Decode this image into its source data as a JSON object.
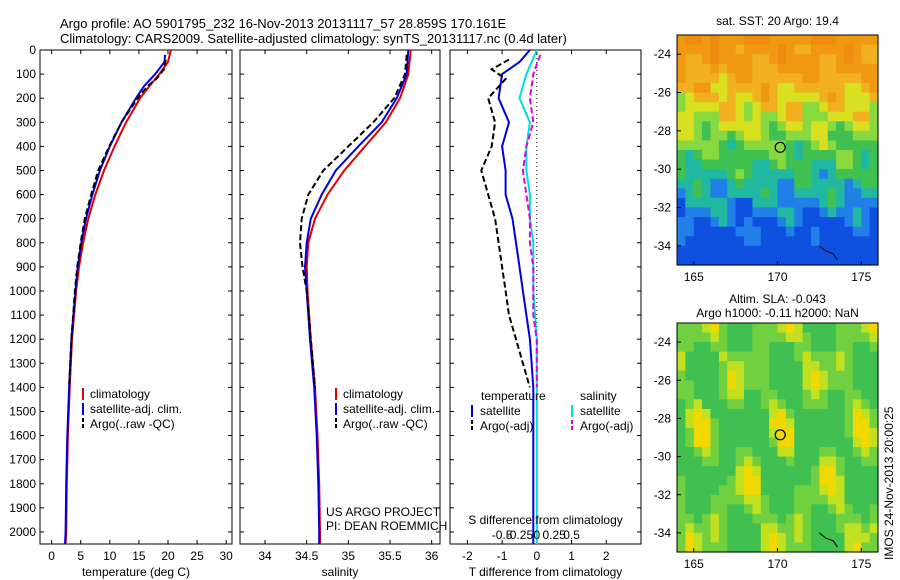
{
  "header": {
    "line1": "Argo profile: AO 5901795_232 16-Nov-2013 20131117_57 28.859S 170.161E",
    "line2": "Climatology: CARS2009. Satellite-adjusted climatology: synTS_20131117.nc (0.4d later)"
  },
  "project": {
    "line1": "US ARGO PROJECT",
    "line2": "PI: DEAN ROEMMICH"
  },
  "side_stamp": "IMOS 24-Nov-2013 20:00:25",
  "colors": {
    "climatology": "#e00000",
    "satellite": "#0000dd",
    "argo": "#000000",
    "sat_salinity": "#00dddd",
    "argo_salinity": "#dd00dd"
  },
  "chart_data": [
    {
      "type": "line",
      "xlabel": "temperature (deg C)",
      "ylabel": "",
      "xlim": [
        -2,
        31
      ],
      "ylim": [
        2050,
        0
      ],
      "xticks": [
        0,
        5,
        10,
        15,
        20,
        25,
        30
      ],
      "yticks": [
        0,
        100,
        200,
        300,
        400,
        500,
        600,
        700,
        800,
        900,
        1000,
        1100,
        1200,
        1300,
        1400,
        1500,
        1600,
        1700,
        1800,
        1900,
        2000
      ],
      "legend": [
        "climatology",
        "satellite-adj. clim.",
        "Argo(..raw -QC)"
      ],
      "series": [
        {
          "name": "climatology",
          "y": [
            0,
            50,
            100,
            150,
            200,
            300,
            400,
            500,
            600,
            700,
            800,
            900,
            1000,
            1200,
            1400,
            1600,
            1800,
            2000,
            2050
          ],
          "x": [
            20.5,
            20.0,
            18.5,
            16.8,
            15.2,
            12.8,
            10.8,
            9.0,
            7.5,
            6.3,
            5.4,
            4.7,
            4.2,
            3.5,
            3.1,
            2.8,
            2.6,
            2.5,
            2.4
          ]
        },
        {
          "name": "satellite-adj. clim.",
          "y": [
            20,
            50,
            100,
            150,
            200,
            300,
            400,
            500,
            600,
            700,
            800,
            900,
            1000,
            1200,
            1400,
            1600,
            1800,
            2000,
            2050
          ],
          "x": [
            19.5,
            19.4,
            17.8,
            15.9,
            14.5,
            12.0,
            10.0,
            8.3,
            7.0,
            5.9,
            5.1,
            4.5,
            4.1,
            3.4,
            3.0,
            2.7,
            2.5,
            2.4,
            2.3
          ]
        },
        {
          "name": "Argo(..raw -QC)",
          "y": [
            40,
            80,
            120,
            150,
            200,
            300,
            400,
            500,
            600,
            700,
            800,
            900,
            1000,
            1100,
            1200,
            1300,
            1400
          ],
          "x": [
            19.6,
            19.3,
            18.0,
            16.5,
            14.8,
            12.0,
            9.9,
            8.0,
            6.8,
            5.7,
            5.0,
            4.4,
            4.0,
            3.7,
            3.4,
            3.2,
            3.0
          ]
        }
      ]
    },
    {
      "type": "line",
      "xlabel": "salinity",
      "ylabel": "",
      "xlim": [
        33.7,
        36.1
      ],
      "ylim": [
        2050,
        0
      ],
      "xticks": [
        34,
        34.5,
        35,
        35.5,
        36
      ],
      "xticklabels": [
        "34",
        "34.5",
        "35",
        "35.5",
        "36"
      ],
      "legend": [
        "climatology",
        "satellite-adj. clim.",
        "Argo(..raw -QC)"
      ],
      "series": [
        {
          "name": "climatology",
          "y": [
            0,
            100,
            200,
            300,
            400,
            500,
            600,
            700,
            800,
            900,
            1000,
            1200,
            1400,
            1600,
            1800,
            2000,
            2050
          ],
          "x": [
            35.75,
            35.72,
            35.62,
            35.45,
            35.2,
            34.95,
            34.75,
            34.6,
            34.52,
            34.5,
            34.51,
            34.55,
            34.6,
            34.63,
            34.65,
            34.66,
            34.66
          ]
        },
        {
          "name": "satellite-adj. clim.",
          "y": [
            0,
            100,
            200,
            300,
            400,
            500,
            600,
            700,
            800,
            900,
            1000,
            1200,
            1400,
            1600,
            1800,
            2000,
            2050
          ],
          "x": [
            35.72,
            35.7,
            35.58,
            35.4,
            35.12,
            34.85,
            34.68,
            34.55,
            34.5,
            34.48,
            34.5,
            34.54,
            34.59,
            34.62,
            34.64,
            34.65,
            34.65
          ]
        },
        {
          "name": "Argo(..raw -QC)",
          "y": [
            20,
            100,
            200,
            300,
            400,
            500,
            600,
            700,
            800,
            900,
            1000,
            1200,
            1400
          ],
          "x": [
            35.7,
            35.68,
            35.55,
            35.3,
            35.0,
            34.7,
            34.52,
            34.44,
            34.42,
            34.45,
            34.5,
            34.55,
            34.6
          ]
        }
      ]
    },
    {
      "type": "line",
      "xlabel": "T difference from climatology",
      "x2label": "S difference from climatology",
      "xlim": [
        -2.5,
        3
      ],
      "ylim": [
        2050,
        0
      ],
      "xticks": [
        -2,
        -1,
        0,
        1,
        2
      ],
      "x2ticks": [
        "-0.5",
        "-0.25",
        "0",
        "0.25",
        "0.5"
      ],
      "legend": [
        "temperature",
        "satellite",
        "Argo(-adj)",
        "salinity",
        "satellite",
        "Argo(-adj)"
      ],
      "series": [
        {
          "name": "satellite",
          "y": [
            0,
            50,
            100,
            200,
            300,
            400,
            500,
            600,
            700,
            800,
            900,
            1000,
            1100,
            1200,
            1400,
            1600,
            1800,
            2000,
            2050
          ],
          "x": [
            -0.2,
            -0.5,
            -1.0,
            -1.1,
            -0.8,
            -1.0,
            -0.9,
            -0.9,
            -0.7,
            -0.6,
            -0.5,
            -0.4,
            -0.3,
            -0.2,
            -0.1,
            -0.1,
            -0.1,
            -0.1,
            -0.1
          ]
        },
        {
          "name": "Argo(-adj)",
          "y": [
            40,
            80,
            120,
            200,
            300,
            400,
            500,
            600,
            700,
            800,
            900,
            1000,
            1100,
            1200,
            1300,
            1400
          ],
          "x": [
            -0.8,
            -1.3,
            -0.9,
            -1.4,
            -1.2,
            -1.3,
            -1.6,
            -1.4,
            -1.2,
            -1.1,
            -1.0,
            -0.9,
            -0.8,
            -0.6,
            -0.4,
            -0.2
          ]
        },
        {
          "name": "satellite",
          "y": [
            0,
            100,
            200,
            300,
            400,
            500,
            600,
            700,
            800,
            900,
            1000,
            1200,
            1400,
            1600,
            1800,
            2000,
            2050
          ],
          "x": [
            0.0,
            -0.3,
            -0.5,
            -0.2,
            -0.3,
            -0.3,
            -0.2,
            -0.2,
            -0.1,
            -0.1,
            -0.1,
            0.0,
            0.0,
            0.0,
            0.0,
            0.0,
            0.0
          ]
        },
        {
          "name": "Argo(-adj)",
          "y": [
            20,
            100,
            200,
            300,
            400,
            500,
            600,
            700,
            800,
            900,
            1000,
            1100,
            1200,
            1300,
            1400
          ],
          "x": [
            0.1,
            -0.1,
            -0.2,
            -0.1,
            -0.3,
            -0.4,
            -0.3,
            -0.2,
            -0.2,
            -0.1,
            -0.1,
            -0.1,
            0.0,
            0.0,
            0.0
          ]
        }
      ]
    },
    {
      "type": "heatmap",
      "title": "sat. SST: 20 Argo: 19.4",
      "xlim": [
        164,
        176
      ],
      "ylim": [
        -35,
        -23
      ],
      "xticks": [
        165,
        170,
        175
      ],
      "yticks": [
        -24,
        -26,
        -28,
        -30,
        -32,
        -34
      ],
      "marker": [
        170.161,
        -28.859
      ]
    },
    {
      "type": "heatmap",
      "title": "Altim. SLA: -0.043",
      "subtitle": "Argo h1000: -0.11 h2000: NaN",
      "xlim": [
        164,
        176
      ],
      "ylim": [
        -35,
        -23
      ],
      "xticks": [
        165,
        170,
        175
      ],
      "yticks": [
        -24,
        -26,
        -28,
        -30,
        -32,
        -34
      ],
      "marker": [
        170.161,
        -28.859
      ]
    }
  ]
}
